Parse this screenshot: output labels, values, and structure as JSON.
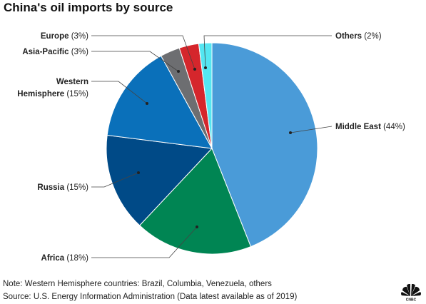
{
  "title": "China's oil imports by source",
  "note": "Note: Western Hemisphere countries: Brazil, Columbia, Venezuela, others",
  "source": "Source: U.S. Energy Information Administration (Data latest available as of 2019)",
  "logo_text": "CNBC",
  "chart_data": {
    "type": "pie",
    "title": "China's oil imports by source",
    "unit": "%",
    "start_angle_deg": 0,
    "direction": "clockwise",
    "slices": [
      {
        "label": "Middle East",
        "value": 44,
        "value_label": "(44%)",
        "color": "#4a9bd8"
      },
      {
        "label": "Africa",
        "value": 18,
        "value_label": "(18%)",
        "color": "#008553"
      },
      {
        "label": "Russia",
        "value": 15,
        "value_label": "(15%)",
        "color": "#004a87"
      },
      {
        "label": "Western Hemisphere",
        "value": 15,
        "value_label": "(15%)",
        "color": "#0a70ba",
        "label_lines": [
          "Western",
          "Hemisphere"
        ]
      },
      {
        "label": "Asia-Pacific",
        "value": 3,
        "value_label": "(3%)",
        "color": "#6d6e71"
      },
      {
        "label": "Europe",
        "value": 3,
        "value_label": "(3%)",
        "color": "#d5262c"
      },
      {
        "label": "Others",
        "value": 2,
        "value_label": "(2%)",
        "color": "#54e6f2"
      }
    ]
  }
}
